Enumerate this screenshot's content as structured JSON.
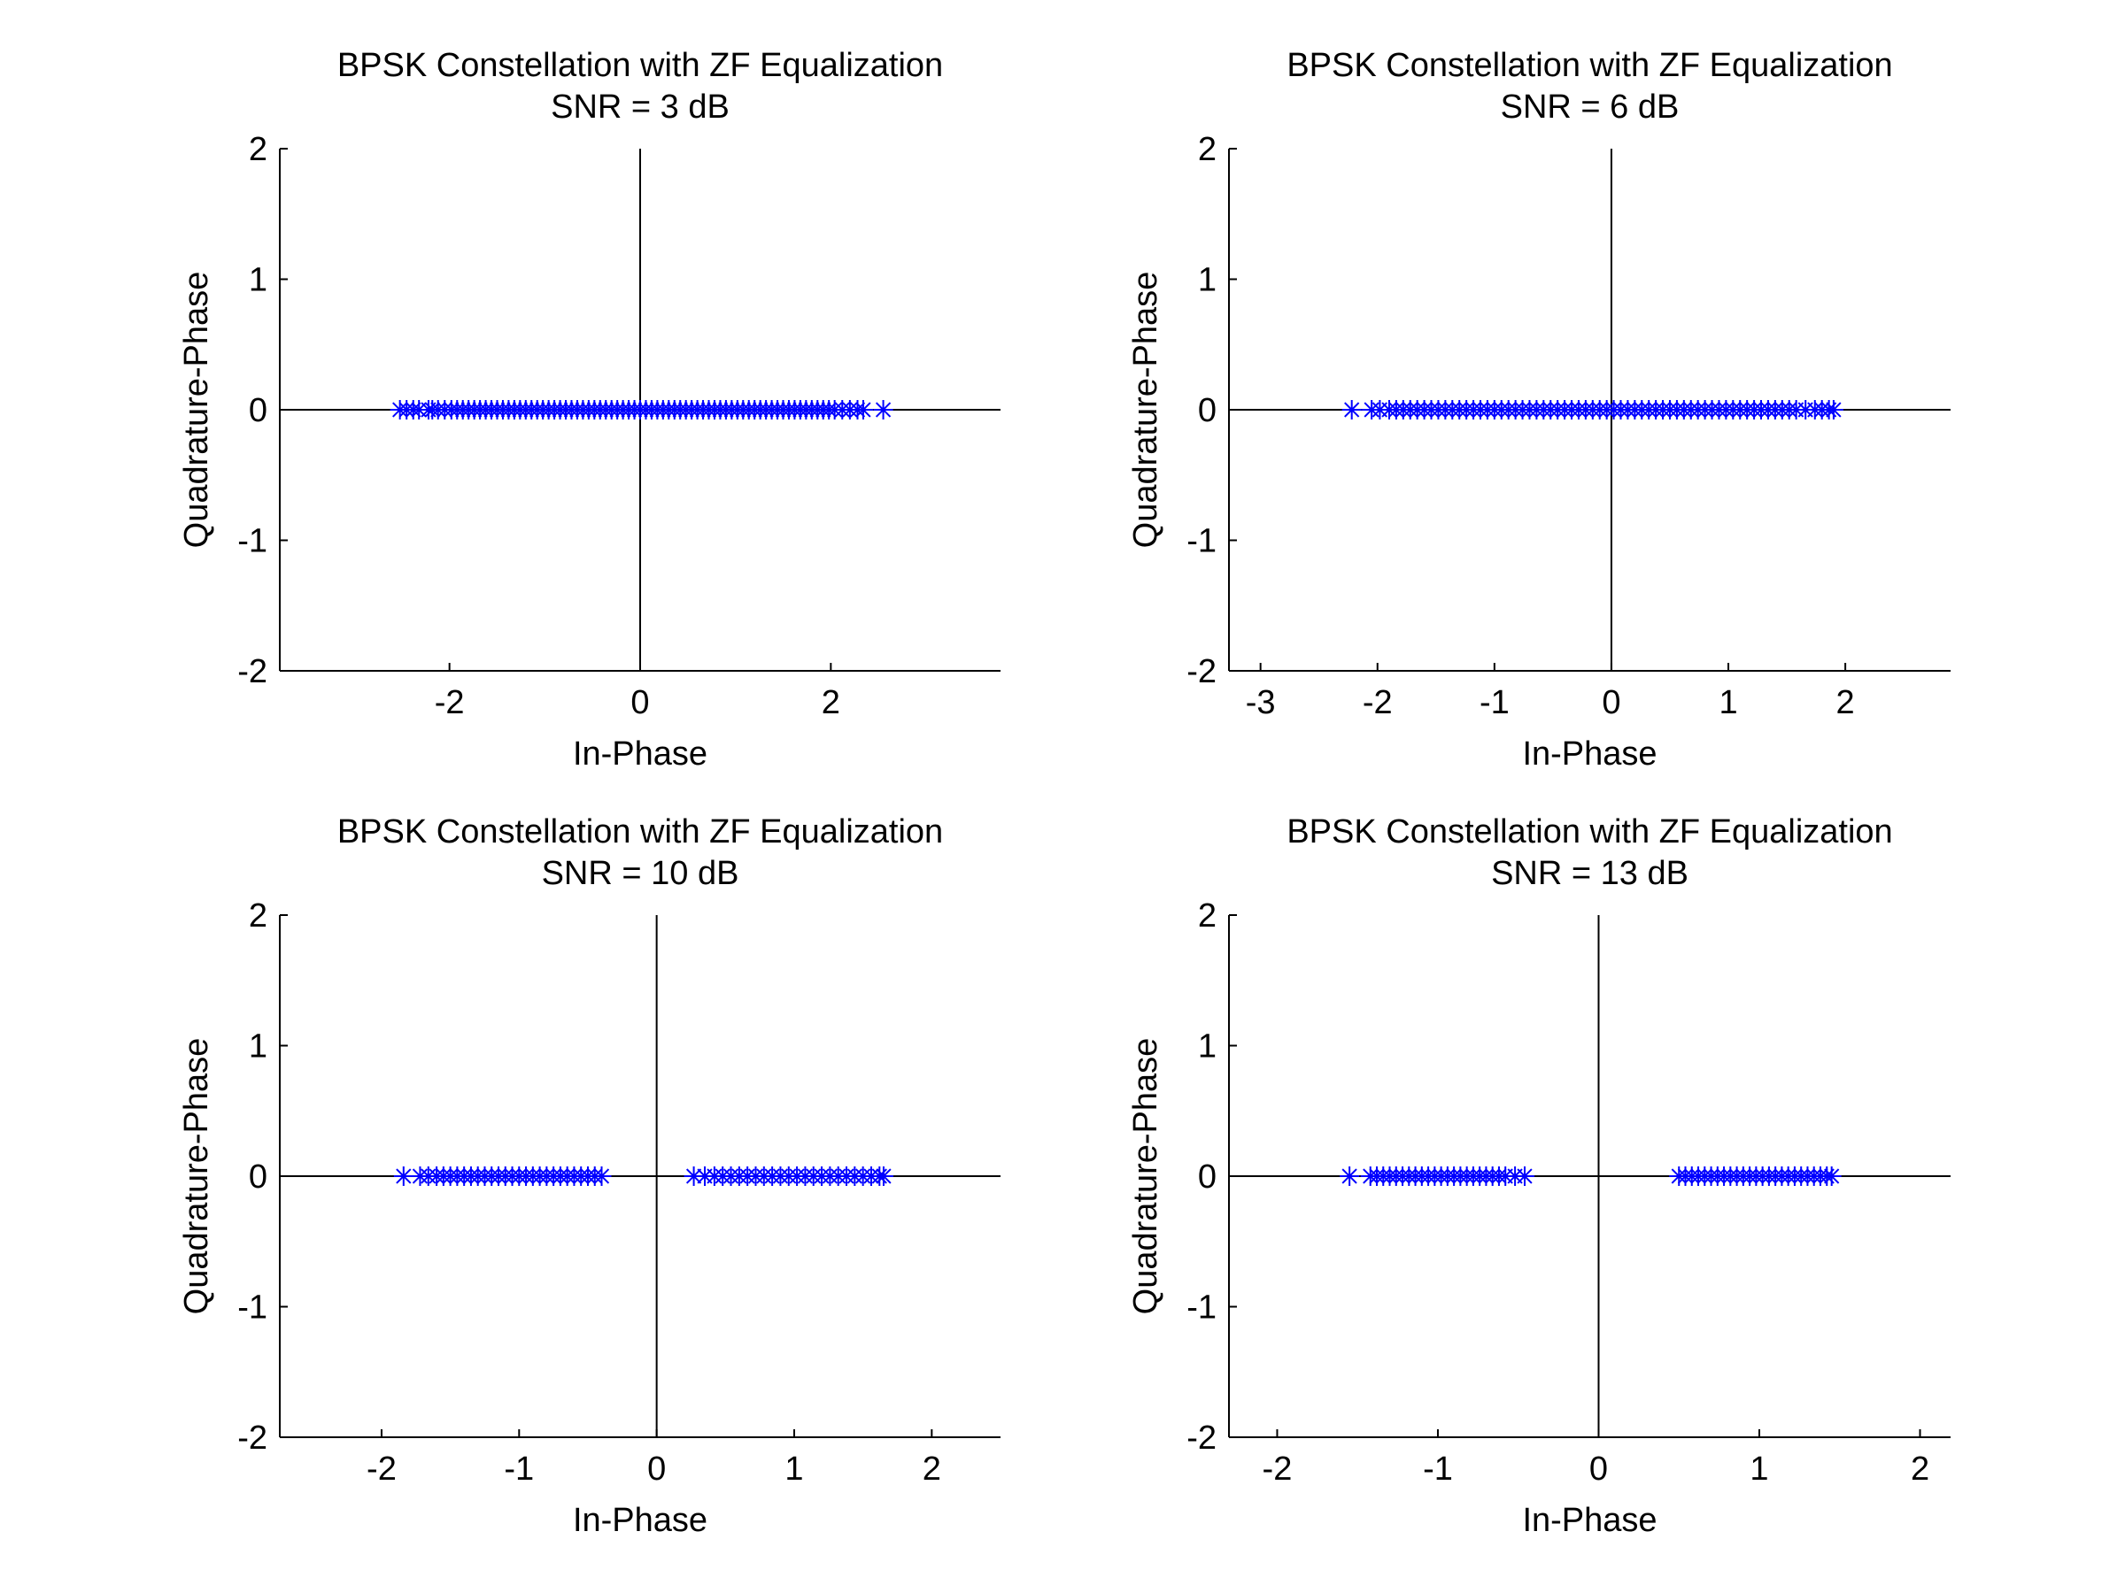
{
  "chart_data": [
    {
      "type": "scatter",
      "title": "BPSK Constellation with ZF Equalization",
      "subtitle": "SNR = 3 dB",
      "xlabel": "In-Phase",
      "ylabel": "Quadrature-Phase",
      "xlim": [
        -3.78,
        3.78
      ],
      "ylim": [
        -2,
        2
      ],
      "xticks": [
        "-2",
        "0",
        "2"
      ],
      "xtick_values": [
        -2,
        0,
        2
      ],
      "yticks": [
        "2",
        "1",
        "0",
        "-1",
        "-2"
      ],
      "ytick_values": [
        2,
        1,
        0,
        -1,
        -2
      ],
      "grid": false,
      "marker": "asterisk",
      "marker_color": "#0000ff",
      "y_value_all_points": 0,
      "x": [
        -2.52,
        -2.45,
        -2.38,
        -2.32,
        -2.22,
        -2.18,
        -2.12,
        -2.05,
        -1.98,
        -1.92,
        -1.86,
        -1.8,
        -1.74,
        -1.68,
        -1.62,
        -1.56,
        -1.5,
        -1.44,
        -1.38,
        -1.32,
        -1.26,
        -1.2,
        -1.14,
        -1.08,
        -1.02,
        -0.96,
        -0.9,
        -0.84,
        -0.78,
        -0.72,
        -0.66,
        -0.6,
        -0.54,
        -0.48,
        -0.42,
        -0.36,
        -0.3,
        -0.24,
        -0.18,
        -0.12,
        -0.06,
        0.0,
        0.06,
        0.12,
        0.18,
        0.24,
        0.3,
        0.36,
        0.42,
        0.48,
        0.54,
        0.6,
        0.66,
        0.72,
        0.78,
        0.84,
        0.9,
        0.96,
        1.02,
        1.08,
        1.14,
        1.2,
        1.26,
        1.32,
        1.38,
        1.44,
        1.5,
        1.56,
        1.62,
        1.68,
        1.74,
        1.8,
        1.86,
        1.92,
        1.98,
        2.04,
        2.12,
        2.2,
        2.28,
        2.34,
        2.55
      ]
    },
    {
      "type": "scatter",
      "title": "BPSK Constellation with ZF Equalization",
      "subtitle": "SNR = 6 dB",
      "xlabel": "In-Phase",
      "ylabel": "Quadrature-Phase",
      "xlim": [
        -3.27,
        2.9
      ],
      "ylim": [
        -2,
        2
      ],
      "xticks": [
        "-3",
        "-2",
        "-1",
        "0",
        "1",
        "2"
      ],
      "xtick_values": [
        -3,
        -2,
        -1,
        0,
        1,
        2
      ],
      "yticks": [
        "2",
        "1",
        "0",
        "-1",
        "-2"
      ],
      "ytick_values": [
        2,
        1,
        0,
        -1,
        -2
      ],
      "grid": false,
      "marker": "asterisk",
      "marker_color": "#0000ff",
      "y_value_all_points": 0,
      "x": [
        -2.22,
        -2.05,
        -1.98,
        -1.9,
        -1.84,
        -1.78,
        -1.72,
        -1.66,
        -1.6,
        -1.54,
        -1.48,
        -1.42,
        -1.36,
        -1.3,
        -1.24,
        -1.18,
        -1.12,
        -1.06,
        -1.0,
        -0.94,
        -0.88,
        -0.82,
        -0.76,
        -0.7,
        -0.64,
        -0.58,
        -0.52,
        -0.46,
        -0.4,
        -0.34,
        -0.28,
        -0.22,
        -0.16,
        -0.1,
        -0.04,
        0.02,
        0.08,
        0.14,
        0.2,
        0.26,
        0.32,
        0.38,
        0.44,
        0.5,
        0.56,
        0.62,
        0.68,
        0.74,
        0.8,
        0.86,
        0.92,
        0.98,
        1.04,
        1.1,
        1.16,
        1.22,
        1.28,
        1.34,
        1.4,
        1.46,
        1.52,
        1.58,
        1.66,
        1.74,
        1.8,
        1.86,
        1.9
      ]
    },
    {
      "type": "scatter",
      "title": "BPSK Constellation with ZF Equalization",
      "subtitle": "SNR = 10 dB",
      "xlabel": "In-Phase",
      "ylabel": "Quadrature-Phase",
      "xlim": [
        -2.74,
        2.5
      ],
      "ylim": [
        -2,
        2
      ],
      "xticks": [
        "-2",
        "-1",
        "0",
        "1",
        "2"
      ],
      "xtick_values": [
        -2,
        -1,
        0,
        1,
        2
      ],
      "yticks": [
        "2",
        "1",
        "0",
        "-1",
        "-2"
      ],
      "ytick_values": [
        2,
        1,
        0,
        -1,
        -2
      ],
      "grid": false,
      "marker": "asterisk",
      "marker_color": "#0000ff",
      "y_value_all_points": 0,
      "x": [
        -1.84,
        -1.72,
        -1.66,
        -1.6,
        -1.55,
        -1.5,
        -1.45,
        -1.4,
        -1.35,
        -1.3,
        -1.25,
        -1.2,
        -1.15,
        -1.1,
        -1.05,
        -1.0,
        -0.95,
        -0.9,
        -0.85,
        -0.8,
        -0.75,
        -0.7,
        -0.65,
        -0.6,
        -0.55,
        -0.5,
        -0.45,
        -0.4,
        0.27,
        0.35,
        0.42,
        0.48,
        0.54,
        0.6,
        0.66,
        0.72,
        0.78,
        0.84,
        0.9,
        0.96,
        1.02,
        1.08,
        1.14,
        1.2,
        1.26,
        1.32,
        1.38,
        1.44,
        1.5,
        1.56,
        1.62,
        1.65
      ]
    },
    {
      "type": "scatter",
      "title": "BPSK Constellation with ZF Equalization",
      "subtitle": "SNR = 13 dB",
      "xlabel": "In-Phase",
      "ylabel": "Quadrature-Phase",
      "xlim": [
        -2.3,
        2.19
      ],
      "ylim": [
        -2,
        2
      ],
      "xticks": [
        "-2",
        "-1",
        "0",
        "1",
        "2"
      ],
      "xtick_values": [
        -2,
        -1,
        0,
        1,
        2
      ],
      "yticks": [
        "2",
        "1",
        "0",
        "-1",
        "-2"
      ],
      "ytick_values": [
        2,
        1,
        0,
        -1,
        -2
      ],
      "grid": false,
      "marker": "asterisk",
      "marker_color": "#0000ff",
      "y_value_all_points": 0,
      "x": [
        -1.55,
        -1.42,
        -1.38,
        -1.34,
        -1.3,
        -1.26,
        -1.22,
        -1.18,
        -1.14,
        -1.1,
        -1.06,
        -1.02,
        -0.98,
        -0.94,
        -0.9,
        -0.86,
        -0.82,
        -0.78,
        -0.74,
        -0.7,
        -0.66,
        -0.62,
        -0.58,
        -0.52,
        -0.46,
        0.5,
        0.54,
        0.58,
        0.62,
        0.66,
        0.7,
        0.74,
        0.78,
        0.82,
        0.86,
        0.9,
        0.94,
        0.98,
        1.02,
        1.06,
        1.1,
        1.14,
        1.18,
        1.22,
        1.26,
        1.3,
        1.34,
        1.38,
        1.42,
        1.45
      ]
    }
  ]
}
